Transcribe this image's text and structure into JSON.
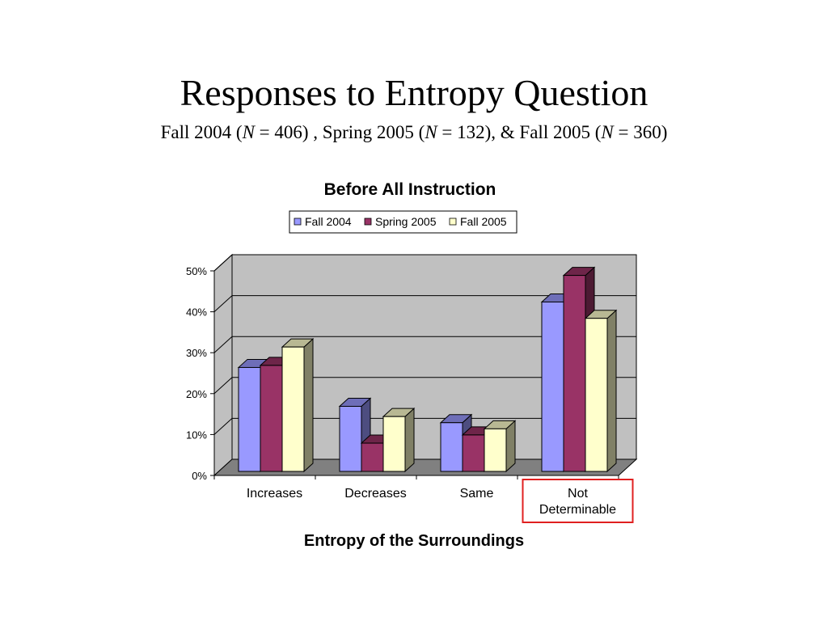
{
  "slide": {
    "title": "Responses to Entropy Question",
    "subtitle": {
      "parts": [
        {
          "text": "Fall 2004 (",
          "italic": false
        },
        {
          "text": "N",
          "italic": true
        },
        {
          "text": " = 406) , Spring 2005 (",
          "italic": false
        },
        {
          "text": "N",
          "italic": true
        },
        {
          "text": " = 132), & Fall 2005 (",
          "italic": false
        },
        {
          "text": "N",
          "italic": true
        },
        {
          "text": " = 360)",
          "italic": false
        }
      ]
    }
  },
  "chart_data": {
    "type": "bar",
    "style": "3d-clustered",
    "title": "Before All Instruction",
    "xlabel": "Entropy of the Surroundings",
    "ylabel": "",
    "categories": [
      "Increases",
      "Decreases",
      "Same",
      "Not Determinable"
    ],
    "highlighted_category": "Not Determinable",
    "series": [
      {
        "name": "Fall 2004",
        "color": "#9999FF",
        "values": [
          26,
          16.5,
          12.5,
          42
        ]
      },
      {
        "name": "Spring 2005",
        "color": "#993366",
        "values": [
          26.5,
          7.5,
          9.5,
          48.5
        ]
      },
      {
        "name": "Fall 2005",
        "color": "#FFFFCC",
        "values": [
          31,
          14,
          11,
          38
        ]
      }
    ],
    "ylim": [
      0,
      50
    ],
    "yticks": [
      0,
      10,
      20,
      30,
      40,
      50
    ],
    "ytick_labels": [
      "0%",
      "10%",
      "20%",
      "30%",
      "40%",
      "50%"
    ],
    "grid": true,
    "legend_position": "top",
    "wall_color": "#C0C0C0",
    "floor_color": "#808080",
    "highlight_color": "#E02020"
  }
}
